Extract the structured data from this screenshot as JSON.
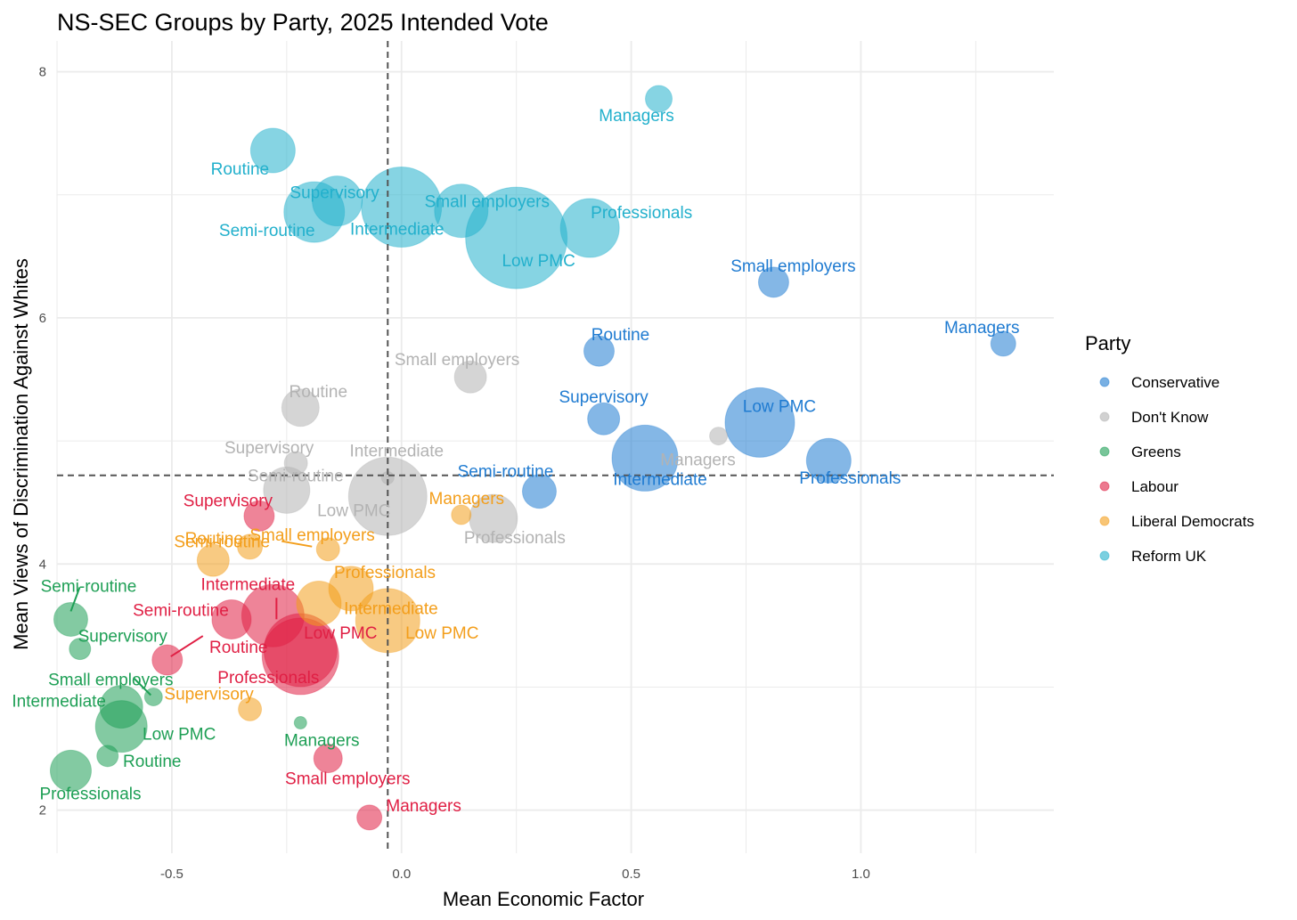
{
  "chart_data": {
    "type": "scatter",
    "title": "NS-SEC Groups by Party, 2025 Intended Vote",
    "xlabel": "Mean Economic Factor",
    "ylabel": "Mean Views of Discrimination Against Whites",
    "xlim": [
      -0.75,
      1.42
    ],
    "ylim": [
      1.65,
      8.25
    ],
    "x_ticks": [
      -0.5,
      0.0,
      0.5,
      1.0
    ],
    "x_tick_labels": [
      "-0.5",
      "0.0",
      "0.5",
      "1.0"
    ],
    "y_ticks": [
      2,
      4,
      6,
      8
    ],
    "y_tick_labels": [
      "2",
      "4",
      "6",
      "8"
    ],
    "reference_lines": {
      "x": -0.03,
      "y": 4.72
    },
    "grid": true,
    "legend": {
      "title": "Party",
      "position": "right"
    },
    "series": [
      {
        "name": "Conservative",
        "color": "#1f7bd1",
        "points": [
          {
            "label": "Managers",
            "x": 1.31,
            "y": 5.79,
            "size": 14
          },
          {
            "label": "Small employers",
            "x": 0.81,
            "y": 6.29,
            "size": 17
          },
          {
            "label": "Routine",
            "x": 0.43,
            "y": 5.73,
            "size": 17
          },
          {
            "label": "Supervisory",
            "x": 0.44,
            "y": 5.18,
            "size": 18
          },
          {
            "label": "Low PMC",
            "x": 0.78,
            "y": 5.15,
            "size": 39
          },
          {
            "label": "Professionals",
            "x": 0.93,
            "y": 4.84,
            "size": 25
          },
          {
            "label": "Intermediate",
            "x": 0.53,
            "y": 4.86,
            "size": 37
          },
          {
            "label": "Semi-routine",
            "x": 0.3,
            "y": 4.59,
            "size": 19
          }
        ]
      },
      {
        "name": "Don't Know",
        "color": "#b3b3b3",
        "points": [
          {
            "label": "Small employers",
            "x": 0.15,
            "y": 5.52,
            "size": 18
          },
          {
            "label": "Routine",
            "x": -0.22,
            "y": 5.27,
            "size": 21
          },
          {
            "label": "Supervisory",
            "x": -0.23,
            "y": 4.82,
            "size": 13
          },
          {
            "label": "Intermediate",
            "x": -0.03,
            "y": 4.7,
            "size": 7
          },
          {
            "label": "Semi-routine",
            "x": -0.25,
            "y": 4.6,
            "size": 26
          },
          {
            "label": "Low PMC",
            "x": -0.03,
            "y": 4.55,
            "size": 44
          },
          {
            "label": "Managers",
            "x": 0.69,
            "y": 5.04,
            "size": 10
          },
          {
            "label": "Professionals",
            "x": 0.2,
            "y": 4.37,
            "size": 27
          }
        ]
      },
      {
        "name": "Greens",
        "color": "#1e9f55",
        "points": [
          {
            "label": "Semi-routine",
            "x": -0.72,
            "y": 3.55,
            "size": 19
          },
          {
            "label": "Supervisory",
            "x": -0.7,
            "y": 3.31,
            "size": 12
          },
          {
            "label": "Small employers",
            "x": -0.54,
            "y": 2.92,
            "size": 10
          },
          {
            "label": "Intermediate",
            "x": -0.61,
            "y": 2.84,
            "size": 24
          },
          {
            "label": "Low PMC",
            "x": -0.61,
            "y": 2.68,
            "size": 29
          },
          {
            "label": "Managers",
            "x": -0.22,
            "y": 2.71,
            "size": 7
          },
          {
            "label": "Routine",
            "x": -0.64,
            "y": 2.44,
            "size": 12
          },
          {
            "label": "Professionals",
            "x": -0.72,
            "y": 2.32,
            "size": 23
          }
        ]
      },
      {
        "name": "Labour",
        "color": "#e01f44",
        "points": [
          {
            "label": "Supervisory",
            "x": -0.31,
            "y": 4.39,
            "size": 17
          },
          {
            "label": "Intermediate",
            "x": -0.28,
            "y": 3.58,
            "size": 35
          },
          {
            "label": "Semi-routine",
            "x": -0.37,
            "y": 3.55,
            "size": 22
          },
          {
            "label": "Routine",
            "x": -0.51,
            "y": 3.22,
            "size": 17
          },
          {
            "label": "Professionals",
            "x": -0.22,
            "y": 3.25,
            "size": 43
          },
          {
            "label": "Low PMC",
            "x": -0.22,
            "y": 3.3,
            "size": 41
          },
          {
            "label": "Small employers",
            "x": -0.16,
            "y": 2.42,
            "size": 16
          },
          {
            "label": "Managers",
            "x": -0.07,
            "y": 1.94,
            "size": 14
          }
        ]
      },
      {
        "name": "Liberal Democrats",
        "color": "#f39e1b",
        "points": [
          {
            "label": "Managers",
            "x": 0.13,
            "y": 4.4,
            "size": 11
          },
          {
            "label": "Routine",
            "x": -0.41,
            "y": 4.03,
            "size": 18
          },
          {
            "label": "Small employers",
            "x": -0.33,
            "y": 4.14,
            "size": 14
          },
          {
            "label": "Semi-routine",
            "x": -0.16,
            "y": 4.12,
            "size": 13
          },
          {
            "label": "Professionals",
            "x": -0.11,
            "y": 3.8,
            "size": 25
          },
          {
            "label": "Intermediate",
            "x": -0.18,
            "y": 3.68,
            "size": 25
          },
          {
            "label": "Low PMC",
            "x": -0.03,
            "y": 3.54,
            "size": 36
          },
          {
            "label": "Supervisory",
            "x": -0.33,
            "y": 2.82,
            "size": 13
          }
        ]
      },
      {
        "name": "Reform UK",
        "color": "#22b0cc",
        "points": [
          {
            "label": "Managers",
            "x": 0.56,
            "y": 7.78,
            "size": 15
          },
          {
            "label": "Routine",
            "x": -0.28,
            "y": 7.36,
            "size": 25
          },
          {
            "label": "Supervisory",
            "x": -0.14,
            "y": 6.95,
            "size": 28
          },
          {
            "label": "Semi-routine",
            "x": -0.19,
            "y": 6.86,
            "size": 34
          },
          {
            "label": "Intermediate",
            "x": 0.0,
            "y": 6.9,
            "size": 45
          },
          {
            "label": "Small employers",
            "x": 0.13,
            "y": 6.87,
            "size": 30
          },
          {
            "label": "Professionals",
            "x": 0.41,
            "y": 6.73,
            "size": 33
          },
          {
            "label": "Low PMC",
            "x": 0.25,
            "y": 6.65,
            "size": 57
          }
        ]
      }
    ]
  }
}
